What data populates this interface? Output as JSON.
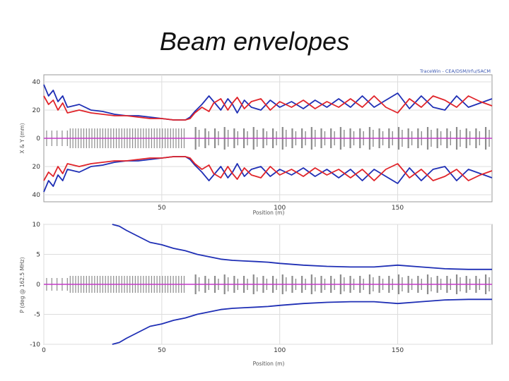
{
  "slide": {
    "title": "Beam envelopes"
  },
  "colors": {
    "x_envelope": "#1f2fb5",
    "y_envelope": "#e0242a",
    "centroid": "#c43ac8",
    "elements": "#8c8c8c",
    "grid": "#dcdcdc"
  },
  "chart_data": [
    {
      "type": "line",
      "title": "",
      "credit": "TraceWin - CEA/DSM/Irfu/SACM",
      "xlabel": "Position (m)",
      "ylabel": "X & Y (mm)",
      "xlim": [
        0,
        190
      ],
      "ylim": [
        -45,
        45
      ],
      "x_ticks": [
        50,
        100,
        150
      ],
      "y_ticks": [
        40,
        20,
        0,
        -20,
        -40
      ],
      "y_tick_labels": [
        "40",
        "20",
        "0",
        "20",
        "40"
      ],
      "grid": true,
      "series": [
        {
          "key": "x",
          "color": "#1f2fb5",
          "x": [
            0,
            2,
            4,
            6,
            8,
            10,
            15,
            20,
            25,
            30,
            35,
            40,
            45,
            50,
            55,
            60,
            62,
            64,
            67,
            70,
            72,
            75,
            78,
            80,
            82,
            85,
            88,
            92,
            96,
            100,
            105,
            110,
            115,
            120,
            125,
            130,
            135,
            140,
            145,
            150,
            155,
            160,
            165,
            170,
            175,
            180,
            185,
            190
          ],
          "y": [
            38,
            30,
            34,
            26,
            30,
            22,
            24,
            20,
            19,
            17,
            16,
            16,
            15,
            14,
            13,
            13,
            15,
            19,
            24,
            30,
            26,
            20,
            28,
            24,
            18,
            27,
            22,
            20,
            27,
            22,
            26,
            21,
            27,
            22,
            28,
            22,
            30,
            22,
            27,
            32,
            21,
            30,
            22,
            20,
            30,
            22,
            25,
            28
          ]
        },
        {
          "key": "y",
          "color": "#e0242a",
          "x": [
            0,
            2,
            4,
            6,
            8,
            10,
            15,
            20,
            25,
            30,
            35,
            40,
            45,
            50,
            55,
            60,
            62,
            64,
            67,
            70,
            72,
            75,
            78,
            80,
            82,
            85,
            88,
            92,
            96,
            100,
            105,
            110,
            115,
            120,
            125,
            130,
            135,
            140,
            145,
            150,
            155,
            160,
            165,
            170,
            175,
            180,
            185,
            190
          ],
          "y": [
            30,
            24,
            27,
            20,
            25,
            18,
            20,
            18,
            17,
            16,
            16,
            15,
            14,
            14,
            13,
            13,
            14,
            18,
            22,
            19,
            25,
            28,
            20,
            25,
            29,
            21,
            26,
            28,
            20,
            26,
            22,
            27,
            21,
            26,
            22,
            28,
            22,
            30,
            22,
            18,
            28,
            22,
            30,
            27,
            22,
            30,
            26,
            23
          ]
        },
        {
          "key": "centroid",
          "color": "#c43ac8",
          "x": [
            0,
            190
          ],
          "y": [
            0,
            0
          ]
        }
      ]
    },
    {
      "type": "line",
      "title": "",
      "xlabel": "Position (m)",
      "ylabel": "P (deg @ 162.5 MHz)",
      "xlim": [
        0,
        190
      ],
      "ylim": [
        -10,
        10
      ],
      "x_ticks": [
        0,
        50,
        100,
        150
      ],
      "y_ticks": [
        10,
        5,
        0,
        -5,
        -10
      ],
      "y_tick_labels": [
        "10",
        "5",
        "0",
        "-5",
        "-10"
      ],
      "grid": true,
      "series": [
        {
          "key": "phase",
          "color": "#1f2fb5",
          "x": [
            29,
            32,
            35,
            40,
            45,
            50,
            55,
            60,
            65,
            70,
            75,
            80,
            85,
            90,
            95,
            100,
            110,
            120,
            130,
            140,
            150,
            160,
            170,
            180,
            190
          ],
          "y": [
            10,
            9.7,
            9.0,
            8.0,
            7.0,
            6.6,
            6.0,
            5.6,
            5.0,
            4.6,
            4.2,
            4.0,
            3.9,
            3.8,
            3.7,
            3.5,
            3.2,
            3.0,
            2.9,
            2.9,
            3.2,
            2.9,
            2.6,
            2.5,
            2.5
          ]
        },
        {
          "key": "centroid",
          "color": "#c43ac8",
          "x": [
            0,
            190
          ],
          "y": [
            0,
            0
          ]
        }
      ]
    }
  ]
}
